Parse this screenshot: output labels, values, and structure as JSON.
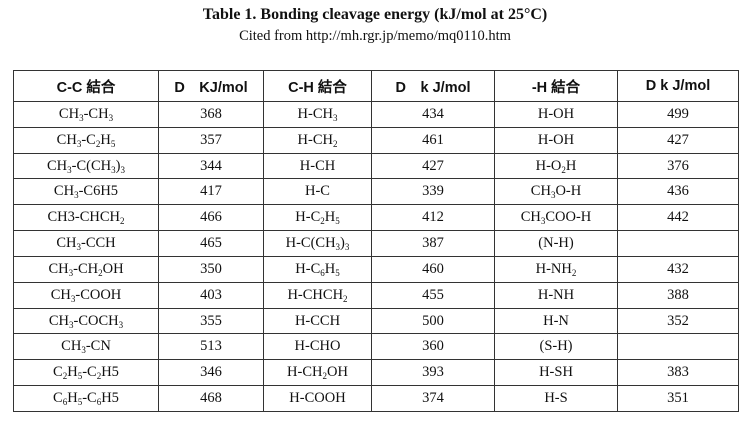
{
  "title": "Table 1. Bonding cleavage energy (kJ/mol at 25°C)",
  "subtitle": "Cited from http://mh.rgr.jp/memo/mq0110.htm",
  "headers": [
    "C-C 結合",
    "D　KJ/mol",
    "C-H 結合",
    "D　k J/mol",
    "-H 結合",
    "D k J/mol"
  ],
  "rows": [
    [
      [
        [
          "CH",
          "3"
        ],
        [
          "-CH",
          "3"
        ]
      ],
      "368",
      [
        [
          "H-CH",
          "3"
        ]
      ],
      "434",
      [
        [
          "H-OH"
        ]
      ],
      "499"
    ],
    [
      [
        [
          "CH",
          "3"
        ],
        [
          "-C",
          "2"
        ],
        [
          "H",
          "5"
        ]
      ],
      "357",
      [
        [
          "H-CH",
          "2"
        ]
      ],
      "461",
      [
        [
          "H-OH"
        ]
      ],
      "427"
    ],
    [
      [
        [
          "CH",
          "3"
        ],
        [
          "-C(CH",
          "3"
        ],
        [
          ")",
          "3"
        ]
      ],
      "344",
      [
        [
          "H-CH"
        ]
      ],
      "427",
      [
        [
          "H-O",
          "2"
        ],
        [
          "H"
        ]
      ],
      "376"
    ],
    [
      [
        [
          "CH",
          "3"
        ],
        [
          "-C6H5"
        ]
      ],
      "417",
      [
        [
          "H-C"
        ]
      ],
      "339",
      [
        [
          "CH",
          "3"
        ],
        [
          "O-H"
        ]
      ],
      "436"
    ],
    [
      [
        [
          "CH3-CHCH",
          "2"
        ]
      ],
      "466",
      [
        [
          "H-C",
          "2"
        ],
        [
          "H",
          "5"
        ]
      ],
      "412",
      [
        [
          "CH",
          "3"
        ],
        [
          "COO-H"
        ]
      ],
      "442"
    ],
    [
      [
        [
          "CH",
          "3"
        ],
        [
          "-CCH"
        ]
      ],
      "465",
      [
        [
          "H-C(CH",
          "3"
        ],
        [
          ")",
          "3"
        ]
      ],
      "387",
      [
        [
          "(N-H)"
        ]
      ],
      ""
    ],
    [
      [
        [
          "CH",
          "3"
        ],
        [
          "-CH",
          "2"
        ],
        [
          "OH"
        ]
      ],
      "350",
      [
        [
          "H-C",
          "6"
        ],
        [
          "H",
          "5"
        ]
      ],
      "460",
      [
        [
          "H-NH",
          "2"
        ]
      ],
      "432"
    ],
    [
      [
        [
          "CH",
          "3"
        ],
        [
          "-COOH"
        ]
      ],
      "403",
      [
        [
          "H-CHCH",
          "2"
        ]
      ],
      "455",
      [
        [
          "H-NH"
        ]
      ],
      "388"
    ],
    [
      [
        [
          "CH",
          "3"
        ],
        [
          "-COCH",
          "3"
        ]
      ],
      "355",
      [
        [
          "H-CCH"
        ]
      ],
      "500",
      [
        [
          "H-N"
        ]
      ],
      "352"
    ],
    [
      [
        [
          "CH",
          "3"
        ],
        [
          "-CN"
        ]
      ],
      "513",
      [
        [
          "H-CHO"
        ]
      ],
      "360",
      [
        [
          "(S-H)"
        ]
      ],
      ""
    ],
    [
      [
        [
          "C",
          "2"
        ],
        [
          "H",
          "5"
        ],
        [
          "-C",
          "2"
        ],
        [
          "H5"
        ]
      ],
      "346",
      [
        [
          "H-CH",
          "2"
        ],
        [
          "OH"
        ]
      ],
      "393",
      [
        [
          "H-SH"
        ]
      ],
      "383"
    ],
    [
      [
        [
          "C",
          "6"
        ],
        [
          "H",
          "5"
        ],
        [
          "-C",
          "6"
        ],
        [
          "H5"
        ]
      ],
      "468",
      [
        [
          "H-COOH"
        ]
      ],
      "374",
      [
        [
          "H-S"
        ]
      ],
      "351"
    ]
  ]
}
